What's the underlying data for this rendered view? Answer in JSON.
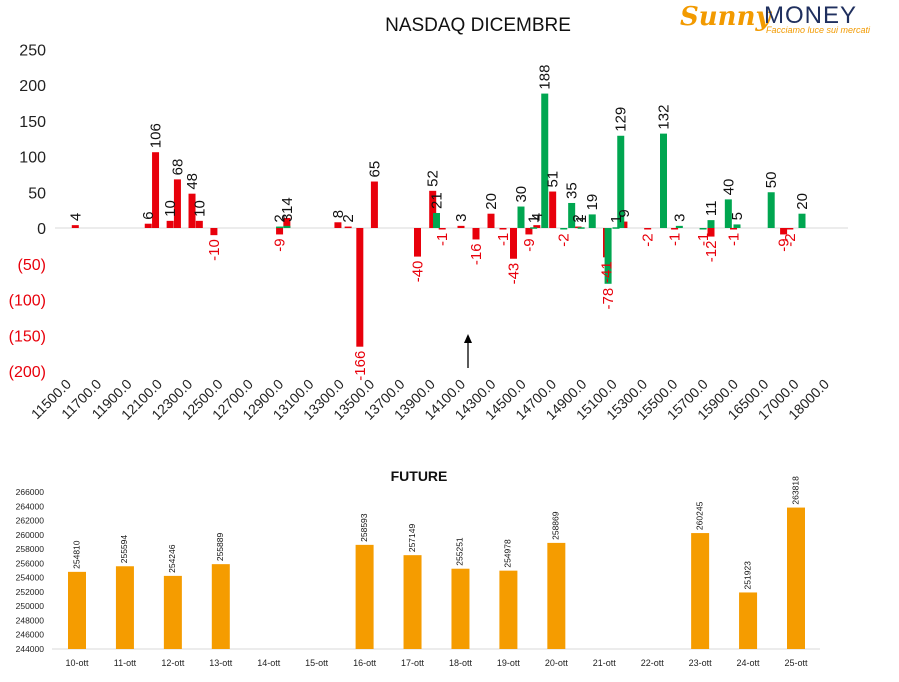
{
  "logo": {
    "brand_first": "Sunny",
    "brand_second": "MONEY",
    "tagline": "Facciamo luce sui mercati"
  },
  "colors": {
    "positive_red": "#e8000b",
    "negative_red": "#e8000b",
    "green": "#00a650",
    "orange": "#f59c00",
    "axis_text": "#222222",
    "negative_label": "#e8000b"
  },
  "chart_data": [
    {
      "type": "bar",
      "title": "NASDAQ DICEMBRE",
      "xlabel": "",
      "ylabel": "",
      "ylim": [
        -200,
        250
      ],
      "yticks": [
        250,
        200,
        150,
        100,
        50,
        0,
        -50,
        -100,
        -150,
        -200
      ],
      "ytick_labels": [
        "250",
        "200",
        "150",
        "100",
        "50",
        "0",
        "(50)",
        "(100)",
        "(150)",
        "(200)"
      ],
      "x_tick_labels": [
        "11500.0",
        "11700.0",
        "11900.0",
        "12100.0",
        "12300.0",
        "12500.0",
        "12700.0",
        "12900.0",
        "13100.0",
        "13300.0",
        "13500.0",
        "13700.0",
        "13900.0",
        "14100.0",
        "14300.0",
        "14500.0",
        "14700.0",
        "14900.0",
        "15100.0",
        "15300.0",
        "15500.0",
        "15700.0",
        "15900.0",
        "16500.0",
        "17000.0",
        "18000.0"
      ],
      "grid": false,
      "legend": "none",
      "series": [
        {
          "color": "red",
          "points": [
            {
              "x": 11550,
              "y": 4
            },
            {
              "x": 12050,
              "y": 6
            },
            {
              "x": 12100,
              "y": 106
            },
            {
              "x": 12200,
              "y": 10
            },
            {
              "x": 12250,
              "y": 68
            },
            {
              "x": 12350,
              "y": 48
            },
            {
              "x": 12400,
              "y": 10
            },
            {
              "x": 12500,
              "y": -10
            },
            {
              "x": 12950,
              "y": -9
            },
            {
              "x": 13000,
              "y": 14
            },
            {
              "x": 13350,
              "y": 8
            },
            {
              "x": 13420,
              "y": 2
            },
            {
              "x": 13500,
              "y": -166
            },
            {
              "x": 13600,
              "y": 65
            },
            {
              "x": 13850,
              "y": -40
            },
            {
              "x": 13930,
              "y": 52
            },
            {
              "x": 13980,
              "y": -1
            },
            {
              "x": 14100,
              "y": 3
            },
            {
              "x": 14200,
              "y": -16
            },
            {
              "x": 14300,
              "y": 20
            },
            {
              "x": 14380,
              "y": -1
            },
            {
              "x": 14450,
              "y": -43
            },
            {
              "x": 14550,
              "y": -9
            },
            {
              "x": 14600,
              "y": 4
            },
            {
              "x": 14700,
              "y": 51
            },
            {
              "x": 14860,
              "y": 2
            },
            {
              "x": 15040,
              "y": -41
            },
            {
              "x": 15150,
              "y": 9
            },
            {
              "x": 15300,
              "y": -2
            },
            {
              "x": 15470,
              "y": -1
            },
            {
              "x": 15700,
              "y": -12
            },
            {
              "x": 15960,
              "y": -1
            },
            {
              "x": 16800,
              "y": -9
            },
            {
              "x": 16900,
              "y": -2
            }
          ]
        },
        {
          "color": "green",
          "points": [
            {
              "x": 12950,
              "y": 2
            },
            {
              "x": 13000,
              "y": 3
            },
            {
              "x": 13950,
              "y": 21
            },
            {
              "x": 14500,
              "y": 30
            },
            {
              "x": 14580,
              "y": 1
            },
            {
              "x": 14650,
              "y": 188
            },
            {
              "x": 14770,
              "y": -2
            },
            {
              "x": 14820,
              "y": 35
            },
            {
              "x": 14880,
              "y": 1
            },
            {
              "x": 14950,
              "y": 19
            },
            {
              "x": 15050,
              "y": -78
            },
            {
              "x": 15100,
              "y": 1
            },
            {
              "x": 15130,
              "y": 129
            },
            {
              "x": 15400,
              "y": 132
            },
            {
              "x": 15500,
              "y": 3
            },
            {
              "x": 15650,
              "y": -1
            },
            {
              "x": 15700,
              "y": 11
            },
            {
              "x": 15900,
              "y": 40
            },
            {
              "x": 16000,
              "y": 5
            },
            {
              "x": 16600,
              "y": 50
            },
            {
              "x": 17200,
              "y": 20
            }
          ]
        }
      ]
    },
    {
      "type": "bar",
      "title": "FUTURE",
      "xlabel": "",
      "ylabel": "",
      "ylim": [
        244000,
        266000
      ],
      "yticks": [
        266000,
        264000,
        262000,
        260000,
        258000,
        256000,
        254000,
        252000,
        250000,
        248000,
        246000,
        244000
      ],
      "categories": [
        "10-ott",
        "11-ott",
        "12-ott",
        "13-ott",
        "14-ott",
        "15-ott",
        "16-ott",
        "17-ott",
        "18-ott",
        "19-ott",
        "20-ott",
        "21-ott",
        "22-ott",
        "23-ott",
        "24-ott",
        "25-ott"
      ],
      "values": [
        254810,
        255594,
        254246,
        255889,
        null,
        null,
        258593,
        257149,
        255251,
        254978,
        258869,
        null,
        null,
        260245,
        251923,
        263818
      ],
      "grid": false,
      "legend": "none"
    }
  ]
}
